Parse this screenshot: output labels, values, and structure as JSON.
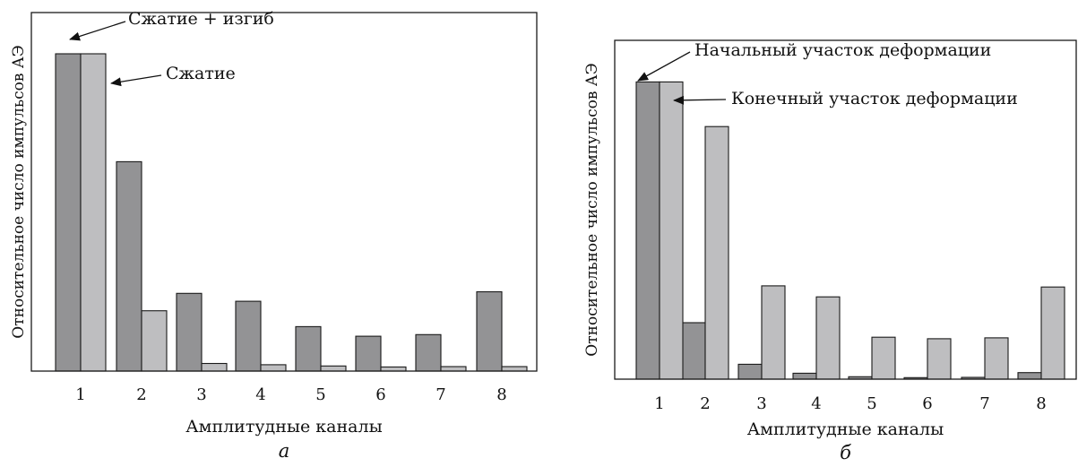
{
  "chart_data": [
    {
      "type": "bar",
      "panel_label": "а",
      "title": "",
      "xlabel": "Амплитудные каналы",
      "ylabel": "Относительное число импульсов АЭ",
      "categories": [
        "1",
        "2",
        "3",
        "4",
        "5",
        "6",
        "7",
        "8"
      ],
      "ylim": [
        0,
        1.13
      ],
      "grid": false,
      "legend": "none",
      "series": [
        {
          "values": [
            1.0,
            0.66,
            0.245,
            0.22,
            0.14,
            0.11,
            0.115,
            0.25
          ],
          "color": "#939395"
        },
        {
          "values": [
            1.0,
            0.19,
            0.024,
            0.02,
            0.016,
            0.013,
            0.014,
            0.014
          ],
          "color": "#bebec0"
        }
      ],
      "annotations": [
        {
          "text": "Сжатие + изгиб",
          "target": "series-1-category-1"
        },
        {
          "text": "Сжатие",
          "target": "series-2-category-1"
        }
      ]
    },
    {
      "type": "bar",
      "panel_label": "б",
      "title": "",
      "xlabel": "Амплитудные каналы",
      "ylabel": "Относительное число импульсов АЭ",
      "categories": [
        "1",
        "2",
        "3",
        "4",
        "5",
        "6",
        "7",
        "8"
      ],
      "ylim": [
        0,
        1.14
      ],
      "grid": false,
      "legend": "none",
      "series": [
        {
          "values": [
            1.0,
            0.19,
            0.05,
            0.02,
            0.008,
            0.005,
            0.006,
            0.022
          ],
          "color": "#939395"
        },
        {
          "values": [
            1.0,
            0.85,
            0.314,
            0.277,
            0.141,
            0.136,
            0.139,
            0.31
          ],
          "color": "#bebec0"
        }
      ],
      "annotations": [
        {
          "text": "Начальный участок деформации",
          "target": "series-1-category-1"
        },
        {
          "text": "Конечный участок деформации",
          "target": "series-2-category-1"
        }
      ]
    }
  ]
}
